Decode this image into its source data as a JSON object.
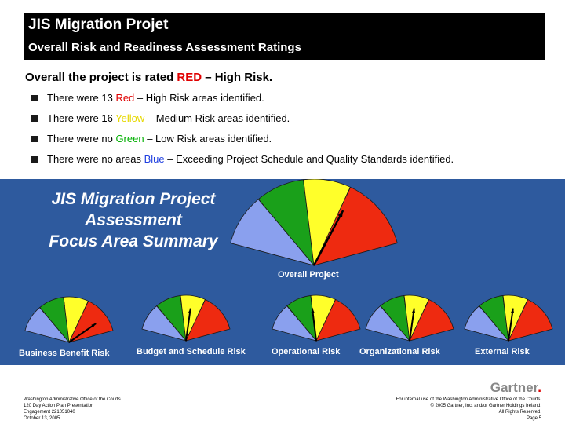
{
  "header": {
    "title": "JIS Migration Projet",
    "subtitle": "Overall Risk and Readiness Assessment Ratings"
  },
  "intro": {
    "prefix": "Overall the project is rated ",
    "rating": "RED",
    "suffix": " – High Risk."
  },
  "bullets": [
    {
      "pre": "There were 13 ",
      "color_word": "Red",
      "post": " – High Risk areas identified.",
      "color": "#e00000"
    },
    {
      "pre": "There were 16 ",
      "color_word": "Yellow",
      "post": " – Medium Risk areas identified.",
      "color": "#e6d800"
    },
    {
      "pre": "There were no ",
      "color_word": "Green",
      "post": " – Low Risk areas identified.",
      "color": "#00b000"
    },
    {
      "pre": "There were no areas ",
      "color_word": "Blue",
      "post": " – Exceeding Project Schedule and Quality Standards identified.",
      "color": "#2040e0"
    }
  ],
  "panel": {
    "title_lines": [
      "JIS Migration Project",
      "Assessment",
      "Focus Area Summary"
    ],
    "background": "#2e5a9e"
  },
  "gauges": [
    {
      "label": "Overall Project",
      "rating": "high-right-yellow-red"
    },
    {
      "label": "Business Benefit Risk",
      "rating": "red"
    },
    {
      "label": "Budget and Schedule Risk",
      "rating": "yellow"
    },
    {
      "label": "Operational Risk",
      "rating": "green"
    },
    {
      "label": "Organizational Risk",
      "rating": "yellow"
    },
    {
      "label": "External Risk",
      "rating": "yellow"
    }
  ],
  "gauge_colors": {
    "blue": "#8aa0ee",
    "green": "#1aa01a",
    "yellow": "#ffff2a",
    "red": "#ee2a10"
  },
  "footer": {
    "left_lines": [
      "Washington Administrative Office of the Courts",
      "120 Day Action Plan Presentation",
      "Engagement 221051040",
      "October 13, 2005"
    ],
    "right_lines": [
      "For internal use of the Washington Administrative Office of the Courts.",
      "© 2005 Gartner, Inc. and/or Gartner Holdings Ireland.",
      "All Rights Reserved.",
      "Page 5"
    ],
    "logo": "Gartner",
    "logo_dot": "."
  }
}
